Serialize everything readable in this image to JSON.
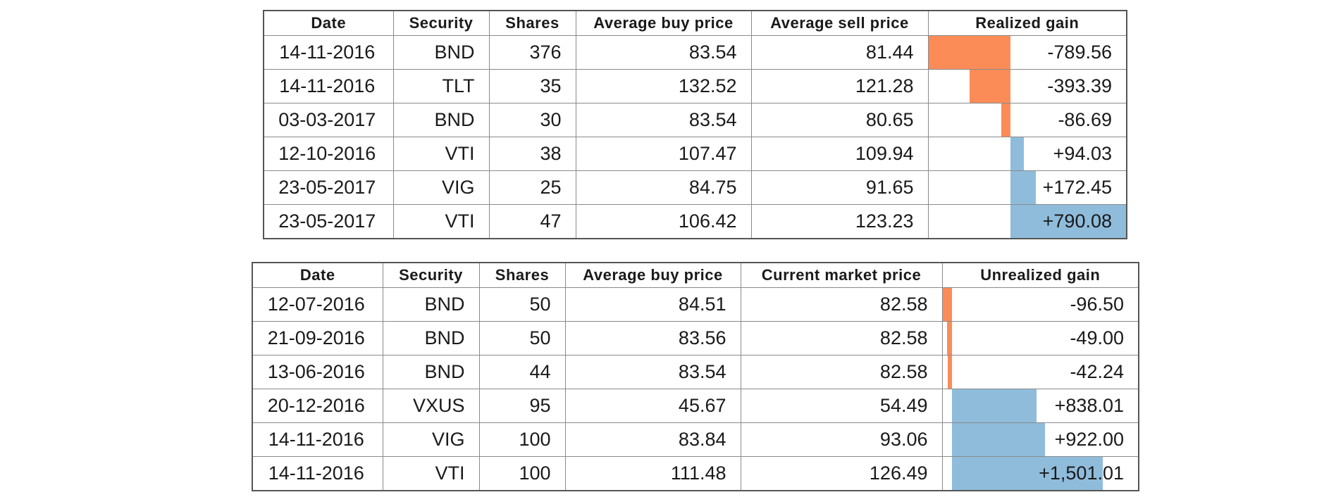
{
  "tables": [
    {
      "columns": [
        "Date",
        "Security",
        "Shares",
        "Average buy price",
        "Average sell price",
        "Realized gain"
      ],
      "rows": [
        {
          "date": "14-11-2016",
          "security": "BND",
          "shares": "376",
          "buy": "83.54",
          "other": "81.44",
          "gain": "-789.56",
          "gain_value": -789.56
        },
        {
          "date": "14-11-2016",
          "security": "TLT",
          "shares": "35",
          "buy": "132.52",
          "other": "121.28",
          "gain": "-393.39",
          "gain_value": -393.39
        },
        {
          "date": "03-03-2017",
          "security": "BND",
          "shares": "30",
          "buy": "83.54",
          "other": "80.65",
          "gain": "-86.69",
          "gain_value": -86.69
        },
        {
          "date": "12-10-2016",
          "security": "VTI",
          "shares": "38",
          "buy": "107.47",
          "other": "109.94",
          "gain": "+94.03",
          "gain_value": 94.03
        },
        {
          "date": "23-05-2017",
          "security": "VIG",
          "shares": "25",
          "buy": "84.75",
          "other": "91.65",
          "gain": "+172.45",
          "gain_value": 172.45
        },
        {
          "date": "23-05-2017",
          "security": "VTI",
          "shares": "47",
          "buy": "106.42",
          "other": "123.23",
          "gain": "+790.08",
          "gain_value": 790.08
        }
      ]
    },
    {
      "columns": [
        "Date",
        "Security",
        "Shares",
        "Average buy price",
        "Current market price",
        "Unrealized gain"
      ],
      "rows": [
        {
          "date": "12-07-2016",
          "security": "BND",
          "shares": "50",
          "buy": "84.51",
          "other": "82.58",
          "gain": "-96.50",
          "gain_value": -96.5
        },
        {
          "date": "21-09-2016",
          "security": "BND",
          "shares": "50",
          "buy": "83.56",
          "other": "82.58",
          "gain": "-49.00",
          "gain_value": -49.0
        },
        {
          "date": "13-06-2016",
          "security": "BND",
          "shares": "44",
          "buy": "83.54",
          "other": "82.58",
          "gain": "-42.24",
          "gain_value": -42.24
        },
        {
          "date": "20-12-2016",
          "security": "VXUS",
          "shares": "95",
          "buy": "45.67",
          "other": "54.49",
          "gain": "+838.01",
          "gain_value": 838.01
        },
        {
          "date": "14-11-2016",
          "security": "VIG",
          "shares": "100",
          "buy": "83.84",
          "other": "93.06",
          "gain": "+922.00",
          "gain_value": 922.0
        },
        {
          "date": "14-11-2016",
          "security": "VTI",
          "shares": "100",
          "buy": "111.48",
          "other": "126.49",
          "gain": "+1,501.01",
          "gain_value": 1501.01
        }
      ]
    }
  ],
  "colors": {
    "negative_bar": "#fb8c57",
    "positive_bar": "#8fbcdb",
    "border": "#8a8a8a"
  }
}
